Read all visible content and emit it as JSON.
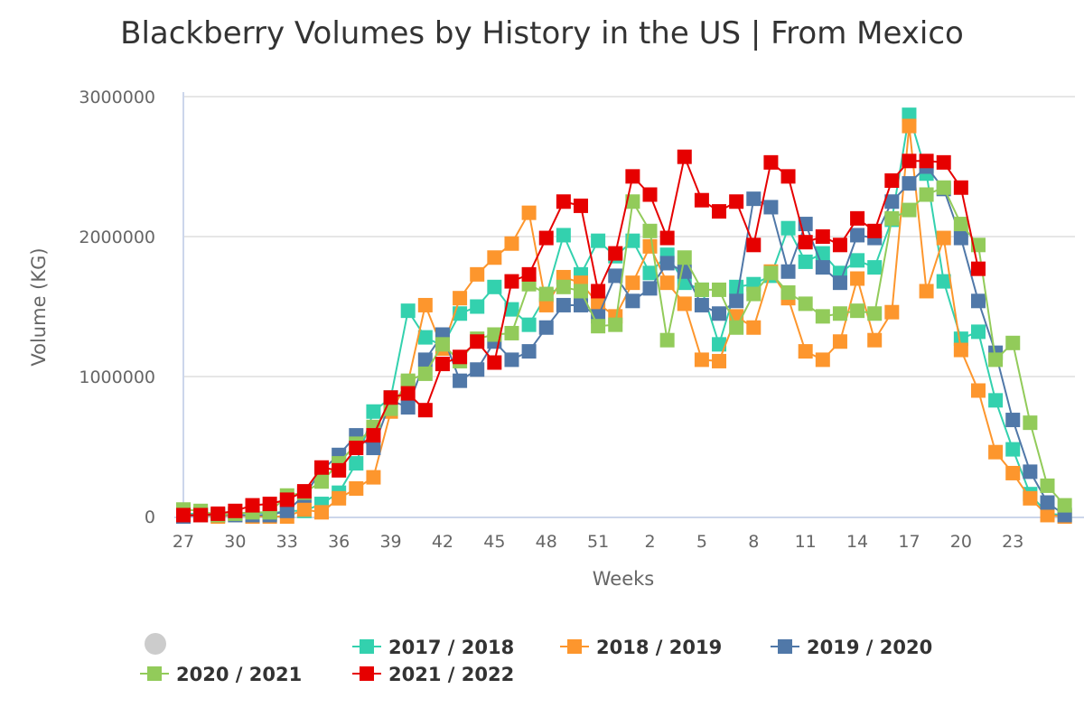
{
  "chart_data": {
    "type": "line",
    "title": "Blackberry Volumes by History in the US | From Mexico",
    "xlabel": "Weeks",
    "ylabel": "Volume (KG)",
    "ylim": [
      0,
      3000000
    ],
    "yticks": [
      "0",
      "1000000",
      "2000000",
      "3000000"
    ],
    "yticks_values": [
      0,
      1000000,
      2000000,
      3000000
    ],
    "grid": "horizontal",
    "legend_position": "bottom",
    "categories": [
      27,
      28,
      29,
      30,
      31,
      32,
      33,
      34,
      35,
      36,
      37,
      38,
      39,
      40,
      41,
      42,
      43,
      44,
      45,
      46,
      47,
      48,
      49,
      50,
      51,
      52,
      1,
      2,
      3,
      4,
      5,
      6,
      7,
      8,
      9,
      10,
      11,
      12,
      13,
      14,
      15,
      16,
      17,
      18,
      19,
      20,
      21,
      22,
      23,
      24,
      25,
      26
    ],
    "xtick_labels": [
      "27",
      "30",
      "33",
      "36",
      "39",
      "42",
      "45",
      "48",
      "51",
      "2",
      "5",
      "8",
      "11",
      "14",
      "17",
      "20",
      "23"
    ],
    "xtick_indices": [
      0,
      3,
      6,
      9,
      12,
      15,
      18,
      21,
      24,
      27,
      30,
      33,
      36,
      39,
      42,
      45,
      48
    ],
    "series": [
      {
        "name": "2017 / 2018",
        "color": "#33D1AE",
        "values": [
          20000,
          20000,
          10000,
          20000,
          30000,
          20000,
          40000,
          40000,
          90000,
          170000,
          380000,
          750000,
          850000,
          1470000,
          1280000,
          1220000,
          1450000,
          1500000,
          1640000,
          1480000,
          1370000,
          1580000,
          2010000,
          1730000,
          1970000,
          1860000,
          1970000,
          1740000,
          1870000,
          1670000,
          1620000,
          1230000,
          1640000,
          1660000,
          1720000,
          2060000,
          1820000,
          1880000,
          1740000,
          1830000,
          1780000,
          2120000,
          2870000,
          2450000,
          1680000,
          1270000,
          1320000,
          830000,
          480000,
          160000,
          20000,
          10000
        ]
      },
      {
        "name": "2018 / 2019",
        "color": "#FD962D",
        "values": [
          10000,
          10000,
          0,
          10000,
          0,
          0,
          0,
          50000,
          30000,
          130000,
          200000,
          280000,
          750000,
          960000,
          1510000,
          1200000,
          1560000,
          1730000,
          1850000,
          1950000,
          2170000,
          1510000,
          1710000,
          1670000,
          1520000,
          1430000,
          1670000,
          1930000,
          1670000,
          1520000,
          1120000,
          1110000,
          1430000,
          1350000,
          1750000,
          1560000,
          1180000,
          1120000,
          1250000,
          1700000,
          1260000,
          1460000,
          2790000,
          1610000,
          1990000,
          1190000,
          900000,
          460000,
          310000,
          130000,
          10000,
          0
        ]
      },
      {
        "name": "2019 / 2020",
        "color": "#5078A8",
        "values": [
          0,
          10000,
          10000,
          10000,
          10000,
          10000,
          40000,
          150000,
          330000,
          440000,
          580000,
          490000,
          830000,
          780000,
          1120000,
          1300000,
          970000,
          1050000,
          1250000,
          1120000,
          1180000,
          1350000,
          1510000,
          1510000,
          1430000,
          1720000,
          1540000,
          1630000,
          1810000,
          1750000,
          1510000,
          1450000,
          1540000,
          2270000,
          2210000,
          1750000,
          2090000,
          1780000,
          1670000,
          2010000,
          1990000,
          2250000,
          2380000,
          2500000,
          2340000,
          1990000,
          1540000,
          1170000,
          690000,
          320000,
          100000,
          10000
        ]
      },
      {
        "name": "2020 / 2021",
        "color": "#92CB5A",
        "values": [
          50000,
          40000,
          10000,
          20000,
          30000,
          30000,
          150000,
          170000,
          250000,
          380000,
          520000,
          640000,
          770000,
          970000,
          1020000,
          1230000,
          1110000,
          1270000,
          1300000,
          1310000,
          1660000,
          1590000,
          1640000,
          1610000,
          1360000,
          1370000,
          2250000,
          2040000,
          1260000,
          1850000,
          1620000,
          1620000,
          1350000,
          1590000,
          1740000,
          1600000,
          1520000,
          1430000,
          1450000,
          1470000,
          1450000,
          2130000,
          2190000,
          2300000,
          2350000,
          2090000,
          1940000,
          1120000,
          1240000,
          670000,
          220000,
          80000
        ]
      },
      {
        "name": "2021 / 2022",
        "color": "#E60000",
        "values": [
          10000,
          10000,
          20000,
          40000,
          80000,
          90000,
          120000,
          180000,
          350000,
          330000,
          490000,
          580000,
          850000,
          880000,
          760000,
          1090000,
          1140000,
          1250000,
          1100000,
          1680000,
          1730000,
          1990000,
          2250000,
          2220000,
          1610000,
          1880000,
          2430000,
          2300000,
          1990000,
          2570000,
          2260000,
          2180000,
          2250000,
          1940000,
          2530000,
          2430000,
          1960000,
          2000000,
          1940000,
          2130000,
          2040000,
          2400000,
          2540000,
          2540000,
          2530000,
          2350000,
          1770000,
          null,
          null,
          null,
          null,
          null
        ]
      }
    ]
  }
}
